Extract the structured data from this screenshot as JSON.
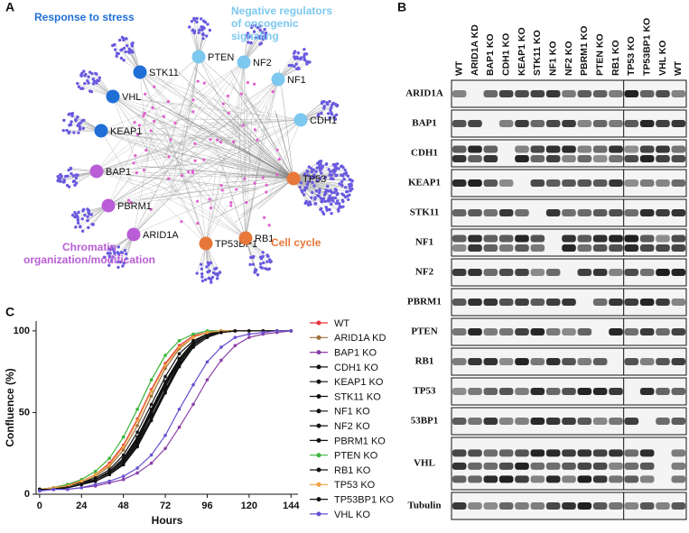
{
  "panels": {
    "a": "A",
    "b": "B",
    "c": "C"
  },
  "network": {
    "groups": [
      {
        "label": "Response to stress",
        "color": "#1f6fd6"
      },
      {
        "label": "Negative regulators of oncogenic signaling",
        "color": "#7cc8ee"
      },
      {
        "label": "Chromatin organization/modification",
        "color": "#b95ed6"
      },
      {
        "label": "Cell cycle",
        "color": "#e8773a"
      }
    ],
    "nodes": [
      {
        "label": "STK11",
        "group": 0
      },
      {
        "label": "PTEN",
        "group": 1
      },
      {
        "label": "NF2",
        "group": 1
      },
      {
        "label": "NF1",
        "group": 1
      },
      {
        "label": "CDH1",
        "group": 1
      },
      {
        "label": "VHL",
        "group": 0
      },
      {
        "label": "KEAP1",
        "group": 0
      },
      {
        "label": "BAP1",
        "group": 2
      },
      {
        "label": "PBRM1",
        "group": 2
      },
      {
        "label": "ARID1A",
        "group": 2
      },
      {
        "label": "TP53BP1",
        "group": 3
      },
      {
        "label": "RB1",
        "group": 3
      },
      {
        "label": "TP53",
        "group": 3
      }
    ]
  },
  "blot": {
    "columns": [
      "WT",
      "ARID1A KD",
      "BAP1 KO",
      "CDH1 KO",
      "KEAP1 KO",
      "STK11 KO",
      "NF1 KO",
      "NF2 KO",
      "PBRM1 KO",
      "PTEN KO",
      "RB1 KO",
      "TP53 KO",
      "TP53BP1 KO",
      "VHL KO",
      "WT"
    ],
    "rows": [
      "ARID1A",
      "BAP1",
      "CDH1",
      "KEAP1",
      "STK11",
      "NF1",
      "NF2",
      "PBRM1",
      "PTEN",
      "RB1",
      "TP53",
      "53BP1",
      "VHL",
      "Tubulin"
    ]
  },
  "chart_data": {
    "type": "line",
    "x_label": "Hours",
    "y_label": "Confluence (%)",
    "x": [
      0,
      8,
      16,
      24,
      32,
      40,
      48,
      56,
      64,
      72,
      80,
      88,
      96,
      104,
      112,
      120,
      128,
      136,
      144
    ],
    "xlim": [
      -2,
      148
    ],
    "xticks": [
      0,
      24,
      48,
      72,
      96,
      120,
      144
    ],
    "ylim": [
      0,
      106
    ],
    "yticks": [
      0,
      50,
      100
    ],
    "series": [
      {
        "name": "WT",
        "color": "#e8313a",
        "values": [
          3,
          4,
          6,
          8,
          12,
          19,
          30,
          46,
          64,
          80,
          91,
          97,
          99,
          100,
          100,
          100,
          100,
          100,
          100
        ]
      },
      {
        "name": "ARID1A KD",
        "color": "#a0703a",
        "values": [
          3,
          4,
          5,
          7,
          11,
          17,
          27,
          42,
          60,
          77,
          89,
          96,
          99,
          100,
          100,
          100,
          100,
          100,
          100
        ]
      },
      {
        "name": "BAP1 KO",
        "color": "#8b3fa8",
        "values": [
          2,
          3,
          3,
          4,
          5,
          7,
          9,
          13,
          19,
          28,
          41,
          55,
          70,
          82,
          91,
          96,
          98,
          99,
          100
        ]
      },
      {
        "name": "CDH1 KO",
        "color": "#111111",
        "values": [
          3,
          3,
          5,
          7,
          10,
          15,
          24,
          38,
          55,
          72,
          86,
          94,
          98,
          100,
          100,
          100,
          100,
          100,
          100
        ]
      },
      {
        "name": "KEAP1 KO",
        "color": "#111111",
        "values": [
          3,
          3,
          5,
          7,
          9,
          14,
          22,
          35,
          52,
          69,
          83,
          93,
          98,
          99,
          100,
          100,
          100,
          100,
          100
        ]
      },
      {
        "name": "STK11 KO",
        "color": "#111111",
        "values": [
          3,
          3,
          4,
          6,
          9,
          13,
          21,
          33,
          50,
          67,
          82,
          92,
          97,
          99,
          100,
          100,
          100,
          100,
          100
        ]
      },
      {
        "name": "NF1 KO",
        "color": "#111111",
        "values": [
          3,
          3,
          4,
          6,
          8,
          12,
          19,
          31,
          47,
          64,
          80,
          91,
          97,
          99,
          100,
          100,
          100,
          100,
          100
        ]
      },
      {
        "name": "NF2 KO",
        "color": "#111111",
        "values": [
          3,
          3,
          4,
          6,
          9,
          13,
          20,
          32,
          49,
          66,
          81,
          92,
          97,
          99,
          100,
          100,
          100,
          100,
          100
        ]
      },
      {
        "name": "PBRM1 KO",
        "color": "#111111",
        "values": [
          3,
          3,
          4,
          6,
          8,
          12,
          18,
          29,
          45,
          62,
          78,
          90,
          96,
          99,
          100,
          100,
          100,
          100,
          100
        ]
      },
      {
        "name": "PTEN KO",
        "color": "#3cb43c",
        "values": [
          3,
          4,
          6,
          9,
          14,
          22,
          35,
          52,
          70,
          85,
          94,
          98,
          100,
          100,
          100,
          100,
          100,
          100,
          100
        ]
      },
      {
        "name": "RB1 KO",
        "color": "#111111",
        "values": [
          3,
          3,
          4,
          6,
          9,
          13,
          21,
          34,
          51,
          68,
          83,
          93,
          98,
          99,
          100,
          100,
          100,
          100,
          100
        ]
      },
      {
        "name": "TP53 KO",
        "color": "#f0a040",
        "values": [
          3,
          4,
          5,
          8,
          12,
          18,
          29,
          45,
          63,
          79,
          90,
          96,
          99,
          100,
          100,
          100,
          100,
          100,
          100
        ]
      },
      {
        "name": "TP53BP1 KO",
        "color": "#111111",
        "values": [
          3,
          3,
          4,
          6,
          8,
          12,
          19,
          30,
          46,
          63,
          79,
          90,
          96,
          99,
          100,
          100,
          100,
          100,
          100
        ]
      },
      {
        "name": "VHL KO",
        "color": "#6a4fd0",
        "values": [
          2,
          3,
          3,
          4,
          6,
          8,
          11,
          16,
          24,
          36,
          52,
          67,
          81,
          90,
          96,
          98,
          99,
          100,
          100
        ]
      }
    ]
  }
}
